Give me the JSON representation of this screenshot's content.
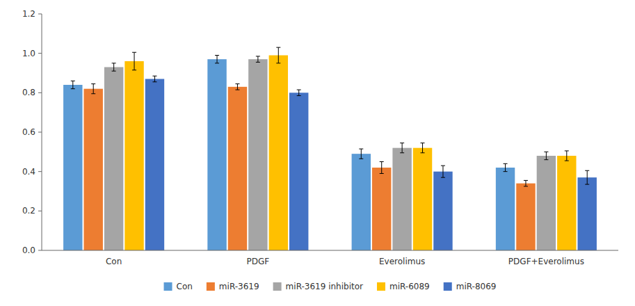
{
  "chart_data": {
    "type": "bar",
    "categories": [
      "Con",
      "PDGF",
      "Everolimus",
      "PDGF+Everolimus"
    ],
    "series": [
      {
        "name": "Con",
        "color": "#5B9BD5",
        "values": [
          0.84,
          0.97,
          0.49,
          0.42
        ],
        "errors": [
          0.02,
          0.02,
          0.025,
          0.02
        ]
      },
      {
        "name": "miR-3619",
        "color": "#ED7D31",
        "values": [
          0.82,
          0.83,
          0.42,
          0.34
        ],
        "errors": [
          0.025,
          0.015,
          0.03,
          0.015
        ]
      },
      {
        "name": "miR-3619 inhibitor",
        "color": "#A5A5A5",
        "values": [
          0.93,
          0.97,
          0.52,
          0.48
        ],
        "errors": [
          0.02,
          0.015,
          0.025,
          0.02
        ]
      },
      {
        "name": "miR-6089",
        "color": "#FFC000",
        "values": [
          0.96,
          0.99,
          0.52,
          0.48
        ],
        "errors": [
          0.045,
          0.04,
          0.025,
          0.025
        ]
      },
      {
        "name": "miR-8069",
        "color": "#4472C4",
        "values": [
          0.87,
          0.8,
          0.4,
          0.37
        ],
        "errors": [
          0.015,
          0.015,
          0.03,
          0.035
        ]
      }
    ],
    "ylim": [
      0,
      1.2
    ],
    "yticks": [
      {
        "value": 0,
        "label": "0.0"
      },
      0.2,
      0.4,
      0.6,
      0.8,
      {
        "value": 1.0,
        "label": "1.0"
      },
      1.2
    ],
    "grid": false,
    "legend": "bottom"
  }
}
